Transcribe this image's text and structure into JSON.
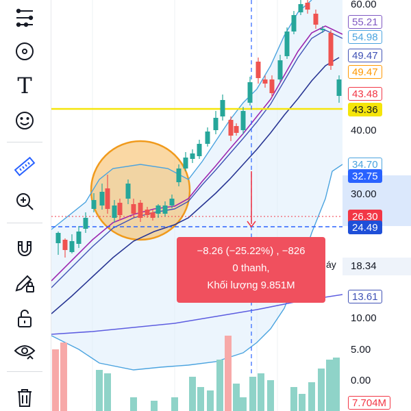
{
  "toolbar": {
    "tools": [
      {
        "name": "trend-line-tool",
        "icon": "trend-lines-icon"
      },
      {
        "name": "gann-fib-tool",
        "icon": "fib-circle-icon"
      },
      {
        "name": "text-tool",
        "icon": "text-icon",
        "glyph": "T"
      },
      {
        "name": "patterns-tool",
        "icon": "smiley-icon"
      },
      {
        "name": "measure-tool",
        "icon": "ruler-icon"
      },
      {
        "name": "zoom-tool",
        "icon": "zoom-in-icon"
      },
      {
        "name": "magnet-tool",
        "icon": "magnet-icon"
      },
      {
        "name": "stay-in-drawing-mode-tool",
        "icon": "pencil-lock-icon"
      },
      {
        "name": "lock-drawings-tool",
        "icon": "unlock-icon"
      },
      {
        "name": "hide-drawings-tool",
        "icon": "eye-icon"
      },
      {
        "name": "remove-drawings-tool",
        "icon": "trash-icon"
      }
    ]
  },
  "price_axis": {
    "labels": [
      "60.00",
      "40.00",
      "30.00",
      "18.34",
      "10.00",
      "5.00",
      "0.00"
    ],
    "tags": [
      {
        "value": "55.21",
        "color": "#7e57c2",
        "filled": false
      },
      {
        "value": "54.98",
        "color": "#4aa3df",
        "filled": false
      },
      {
        "value": "49.47",
        "color": "#3f51b5",
        "filled": false
      },
      {
        "value": "49.47",
        "color": "#ff9800",
        "filled": false
      },
      {
        "value": "43.48",
        "color": "#f23645",
        "filled": false
      },
      {
        "value": "43.36",
        "color": "#f5e50a",
        "filled": true,
        "text_color": "#131722"
      },
      {
        "value": "34.70",
        "color": "#4aa3df",
        "filled": false
      },
      {
        "value": "32.75",
        "color": "#2962ff",
        "filled": true
      },
      {
        "value": "26.30",
        "color": "#f23645",
        "filled": true
      },
      {
        "value": "24.49",
        "color": "#1f4fd8",
        "filled": true
      },
      {
        "value": "13.61",
        "color": "#3f51b5",
        "filled": false
      },
      {
        "value": "7.704M",
        "color": "#f23645",
        "filled": false
      }
    ]
  },
  "measure_tooltip": {
    "line1": "−8.26 (−25.22%) , −826",
    "line2": "0 thanh,",
    "line3": "Khối lượng 9.851M"
  },
  "partial_label": "áy",
  "colors": {
    "candle_up": "#26a69a",
    "candle_down": "#ef5350",
    "volume_up": "#8fd3c8",
    "volume_down": "#f7a9a8",
    "support_line": "#f5e50a"
  }
}
